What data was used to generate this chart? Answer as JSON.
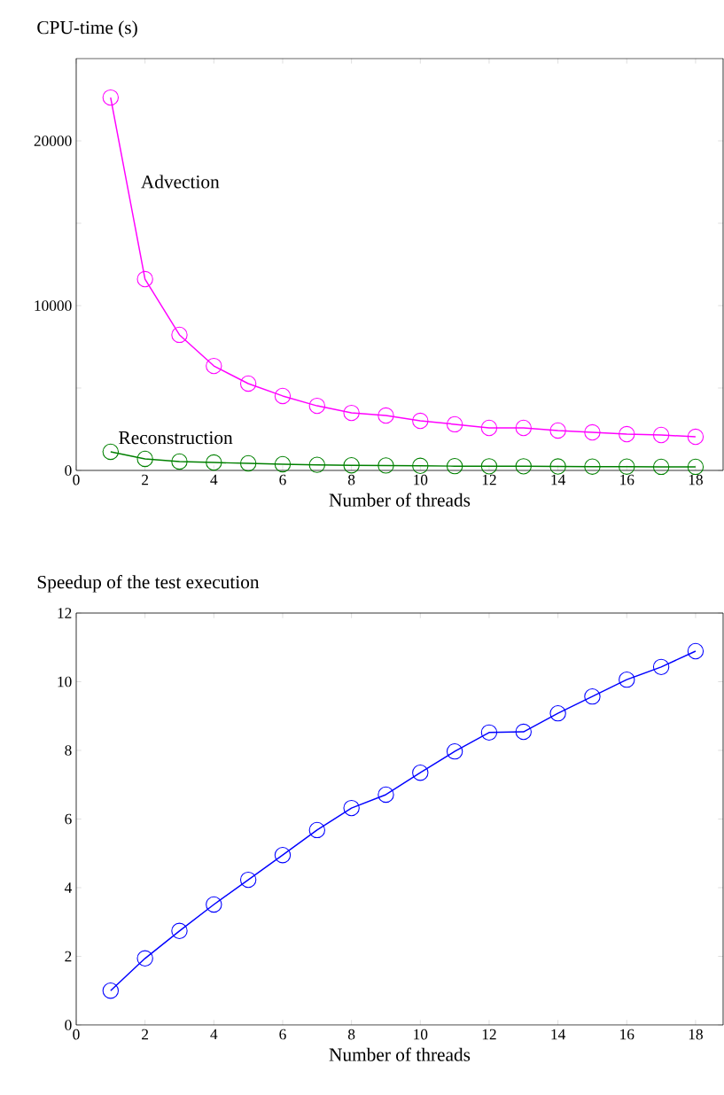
{
  "chart_data": [
    {
      "type": "line",
      "ylabel": "CPU-time (s)",
      "xlabel": "Number of threads",
      "x": [
        1,
        2,
        3,
        4,
        5,
        6,
        7,
        8,
        9,
        10,
        11,
        12,
        13,
        14,
        15,
        16,
        17,
        18
      ],
      "xlim": [
        0,
        18.8
      ],
      "xticks": [
        0,
        2,
        4,
        6,
        8,
        10,
        12,
        14,
        16,
        18
      ],
      "ylim": [
        0,
        25000
      ],
      "yticks": [
        0,
        {
          "value": 5000,
          "label": null
        },
        10000,
        {
          "value": 15000,
          "label": null
        },
        20000
      ],
      "marker": "circle",
      "line_style": "solid",
      "series": [
        {
          "name": "Advection",
          "color": "#ff00ff",
          "values": [
            22630,
            11610,
            8230,
            6340,
            5270,
            4520,
            3920,
            3490,
            3330,
            3010,
            2800,
            2580,
            2580,
            2420,
            2310,
            2200,
            2150,
            2040
          ]
        },
        {
          "name": "Reconstruction",
          "color": "#008000",
          "values": [
            1130,
            700,
            540,
            480,
            430,
            380,
            340,
            310,
            300,
            280,
            260,
            250,
            250,
            240,
            230,
            230,
            220,
            220
          ]
        }
      ]
    },
    {
      "type": "line",
      "ylabel": "Speedup of the test execution",
      "xlabel": "Number of threads",
      "x": [
        1,
        2,
        3,
        4,
        5,
        6,
        7,
        8,
        9,
        10,
        11,
        12,
        13,
        14,
        15,
        16,
        17,
        18
      ],
      "xlim": [
        0,
        18.8
      ],
      "xticks": [
        0,
        2,
        4,
        6,
        8,
        10,
        12,
        14,
        16,
        18
      ],
      "ylim": [
        0,
        12
      ],
      "yticks": [
        0,
        2,
        4,
        6,
        8,
        10,
        12
      ],
      "marker": "circle",
      "line_style": "solid",
      "series": [
        {
          "color": "#0000ff",
          "values": [
            1.0,
            1.94,
            2.74,
            3.51,
            4.23,
            4.95,
            5.68,
            6.32,
            6.71,
            7.35,
            7.97,
            8.52,
            8.54,
            9.08,
            9.57,
            10.06,
            10.43,
            10.89
          ]
        }
      ]
    }
  ]
}
